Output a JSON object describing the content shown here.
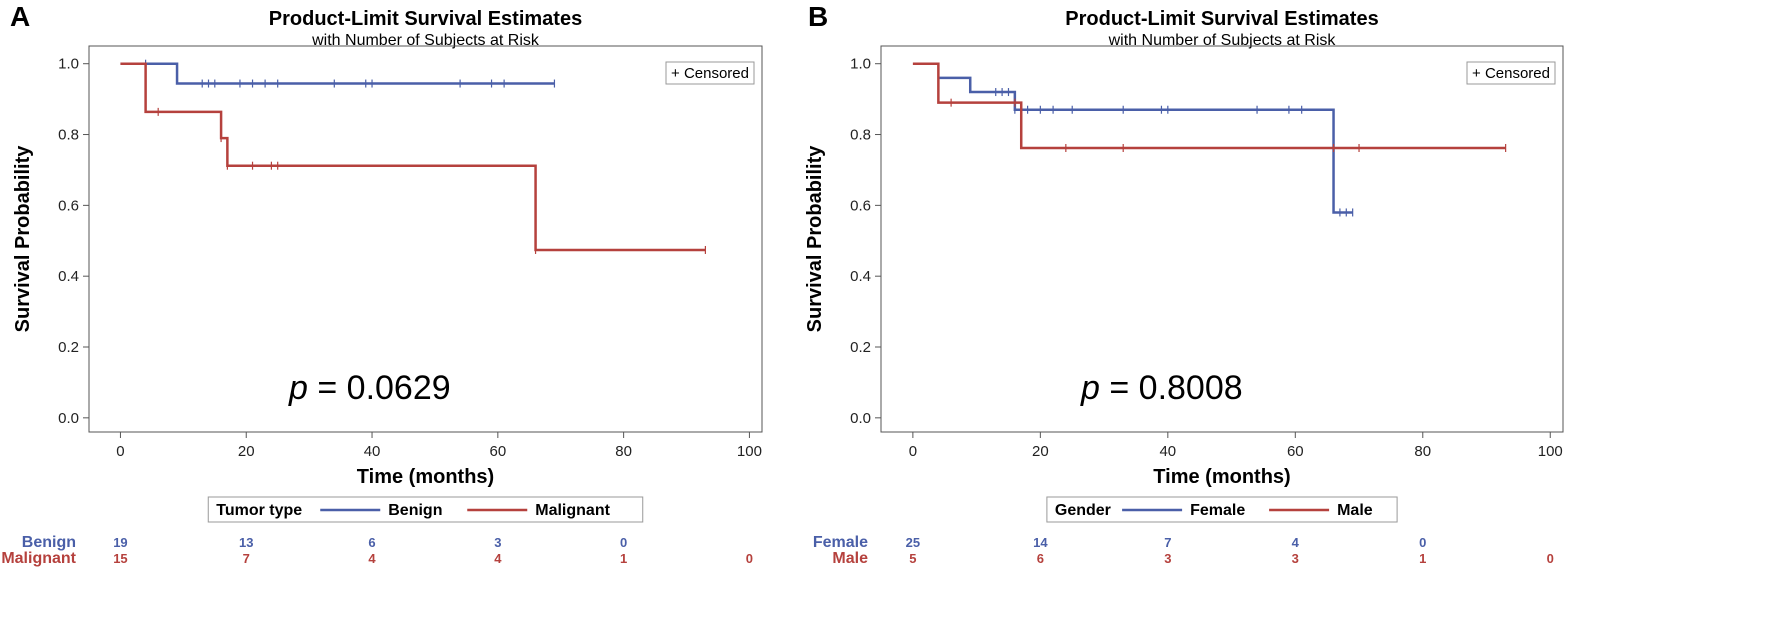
{
  "chart_data": [
    {
      "type": "line",
      "panel": "A",
      "title": "Product-Limit Survival Estimates",
      "subtitle": "with Number of Subjects at Risk",
      "xlabel": "Time (months)",
      "ylabel": "Survival Probability",
      "xlim": [
        0,
        100
      ],
      "ylim": [
        0,
        1
      ],
      "xticks": [
        "0",
        "20",
        "40",
        "60",
        "80",
        "100"
      ],
      "yticks": [
        "0.0",
        "0.2",
        "0.4",
        "0.6",
        "0.8",
        "1.0"
      ],
      "p_prefix": "p",
      "p_value": " = 0.0629",
      "censored_label": "+ Censored",
      "legend_title": "Tumor type",
      "series": [
        {
          "name": "Benign",
          "color": "#4a5fa8",
          "steps": [
            [
              0,
              1.0
            ],
            [
              9,
              0.944
            ],
            [
              69,
              0.944
            ]
          ],
          "censored": [
            [
              4,
              1.0
            ],
            [
              13,
              0.944
            ],
            [
              14,
              0.944
            ],
            [
              15,
              0.944
            ],
            [
              19,
              0.944
            ],
            [
              21,
              0.944
            ],
            [
              23,
              0.944
            ],
            [
              25,
              0.944
            ],
            [
              34,
              0.944
            ],
            [
              39,
              0.944
            ],
            [
              40,
              0.944
            ],
            [
              54,
              0.944
            ],
            [
              59,
              0.944
            ],
            [
              61,
              0.944
            ],
            [
              69,
              0.944
            ]
          ],
          "at_risk": [
            "19",
            "13",
            "6",
            "3",
            "0",
            ""
          ]
        },
        {
          "name": "Malignant",
          "color": "#b5413d",
          "steps": [
            [
              0,
              1.0
            ],
            [
              4,
              0.864
            ],
            [
              16,
              0.79
            ],
            [
              17,
              0.712
            ],
            [
              66,
              0.712
            ],
            [
              66,
              0.474
            ],
            [
              93,
              0.474
            ]
          ],
          "censored": [
            [
              6,
              0.864
            ],
            [
              16,
              0.79
            ],
            [
              17,
              0.712
            ],
            [
              21,
              0.712
            ],
            [
              24,
              0.712
            ],
            [
              25,
              0.712
            ],
            [
              66,
              0.474
            ],
            [
              93,
              0.474
            ]
          ],
          "at_risk": [
            "15",
            "7",
            "4",
            "4",
            "1",
            "0"
          ]
        }
      ]
    },
    {
      "type": "line",
      "panel": "B",
      "title": "Product-Limit Survival Estimates",
      "subtitle": "with Number of Subjects at Risk",
      "xlabel": "Time (months)",
      "ylabel": "Survival Probability",
      "xlim": [
        0,
        100
      ],
      "ylim": [
        0,
        1
      ],
      "xticks": [
        "0",
        "20",
        "40",
        "60",
        "80",
        "100"
      ],
      "yticks": [
        "0.0",
        "0.2",
        "0.4",
        "0.6",
        "0.8",
        "1.0"
      ],
      "p_prefix": "p",
      "p_value": " = 0.8008",
      "censored_label": "+ Censored",
      "legend_title": "Gender",
      "series": [
        {
          "name": "Female",
          "color": "#4a5fa8",
          "steps": [
            [
              4,
              0.96
            ],
            [
              9,
              0.96
            ],
            [
              9,
              0.92
            ],
            [
              16,
              0.92
            ],
            [
              16,
              0.87
            ],
            [
              66,
              0.87
            ],
            [
              66,
              0.58
            ],
            [
              69,
              0.58
            ]
          ],
          "censored": [
            [
              4,
              0.96
            ],
            [
              13,
              0.92
            ],
            [
              14,
              0.92
            ],
            [
              15,
              0.92
            ],
            [
              16,
              0.87
            ],
            [
              18,
              0.87
            ],
            [
              20,
              0.87
            ],
            [
              22,
              0.87
            ],
            [
              25,
              0.87
            ],
            [
              33,
              0.87
            ],
            [
              39,
              0.87
            ],
            [
              40,
              0.87
            ],
            [
              54,
              0.87
            ],
            [
              59,
              0.87
            ],
            [
              61,
              0.87
            ],
            [
              67,
              0.58
            ],
            [
              68,
              0.58
            ],
            [
              69,
              0.58
            ]
          ],
          "at_risk": [
            "25",
            "14",
            "7",
            "4",
            "0",
            ""
          ]
        },
        {
          "name": "Male",
          "color": "#b5413d",
          "steps": [
            [
              0,
              1.0
            ],
            [
              4,
              1.0
            ],
            [
              4,
              0.89
            ],
            [
              17,
              0.89
            ],
            [
              17,
              0.762
            ],
            [
              93,
              0.762
            ]
          ],
          "censored": [
            [
              6,
              0.89
            ],
            [
              16,
              0.89
            ],
            [
              24,
              0.762
            ],
            [
              33,
              0.762
            ],
            [
              66,
              0.762
            ],
            [
              70,
              0.762
            ],
            [
              93,
              0.762
            ]
          ],
          "at_risk": [
            "5",
            "6",
            "3",
            "3",
            "1",
            "0"
          ]
        }
      ]
    }
  ]
}
